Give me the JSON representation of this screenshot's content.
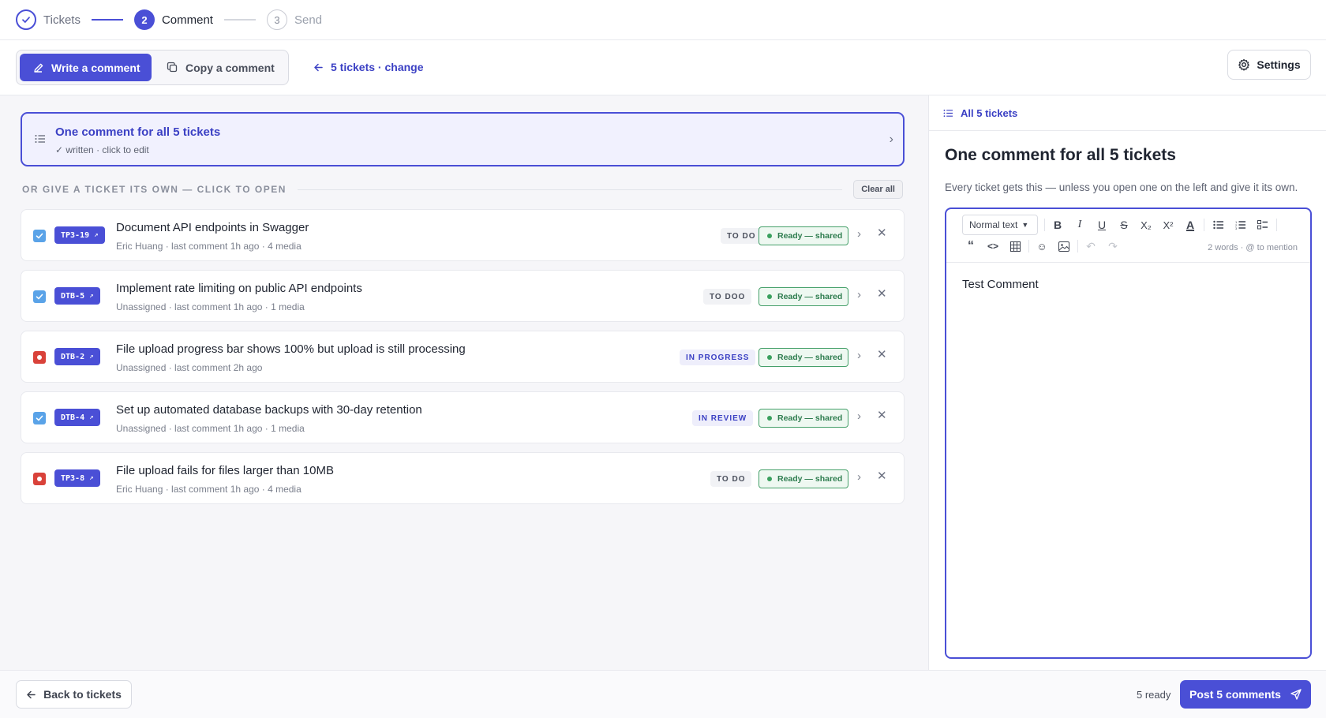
{
  "stepper": {
    "steps": [
      {
        "num": "✓",
        "label": "Tickets",
        "state": "done"
      },
      {
        "num": "2",
        "label": "Comment",
        "state": "active"
      },
      {
        "num": "3",
        "label": "Send",
        "state": "pending"
      }
    ]
  },
  "toolbar": {
    "write_label": "Write a comment",
    "copy_label": "Copy a comment",
    "change_label": "5 tickets · change",
    "settings_label": "Settings"
  },
  "left": {
    "one_card_title": "One comment for all 5 tickets",
    "one_card_sub": "✓ written · click to edit",
    "section_label": "OR GIVE A TICKET ITS OWN — CLICK TO OPEN",
    "clear_label": "Clear all",
    "ready_label": "Ready — shared",
    "tickets": [
      {
        "key": "TP3-19",
        "title": "Document API endpoints in Swagger",
        "meta": "Eric Huang · last comment 1h ago · 4 media",
        "status": "TO DO",
        "check": "checked"
      },
      {
        "key": "DTB-5",
        "title": "Implement rate limiting on public API endpoints",
        "meta": "Unassigned · last comment 1h ago · 1 media",
        "status": "TO DOO",
        "check": "checked"
      },
      {
        "key": "DTB-2",
        "title": "File upload progress bar shows 100% but upload is still processing",
        "meta": "Unassigned · last comment 2h ago",
        "status": "IN PROGRESS",
        "check": "error"
      },
      {
        "key": "DTB-4",
        "title": "Set up automated database backups with 30-day retention",
        "meta": "Unassigned · last comment 1h ago · 1 media",
        "status": "IN REVIEW",
        "check": "checked"
      },
      {
        "key": "TP3-8",
        "title": "File upload fails for files larger than 10MB",
        "meta": "Eric Huang · last comment 1h ago · 4 media",
        "status": "TO DO",
        "check": "error"
      }
    ]
  },
  "right": {
    "head_label": "All 5 tickets",
    "title": "One comment for all 5 tickets",
    "desc": "Every ticket gets this — unless you open one on the left and give it its own.",
    "format_label": "Normal text",
    "word_count": "2 words · @ to mention",
    "body": "Test Comment"
  },
  "footer": {
    "back_label": "Back to tickets",
    "ready_count": "5 ready",
    "post_label": "Post 5 comments"
  },
  "colors": {
    "accent": "#4a4fd6",
    "ready_green": "#2e7d4f",
    "error_red": "#d9423a",
    "check_blue": "#5aa3e8"
  }
}
